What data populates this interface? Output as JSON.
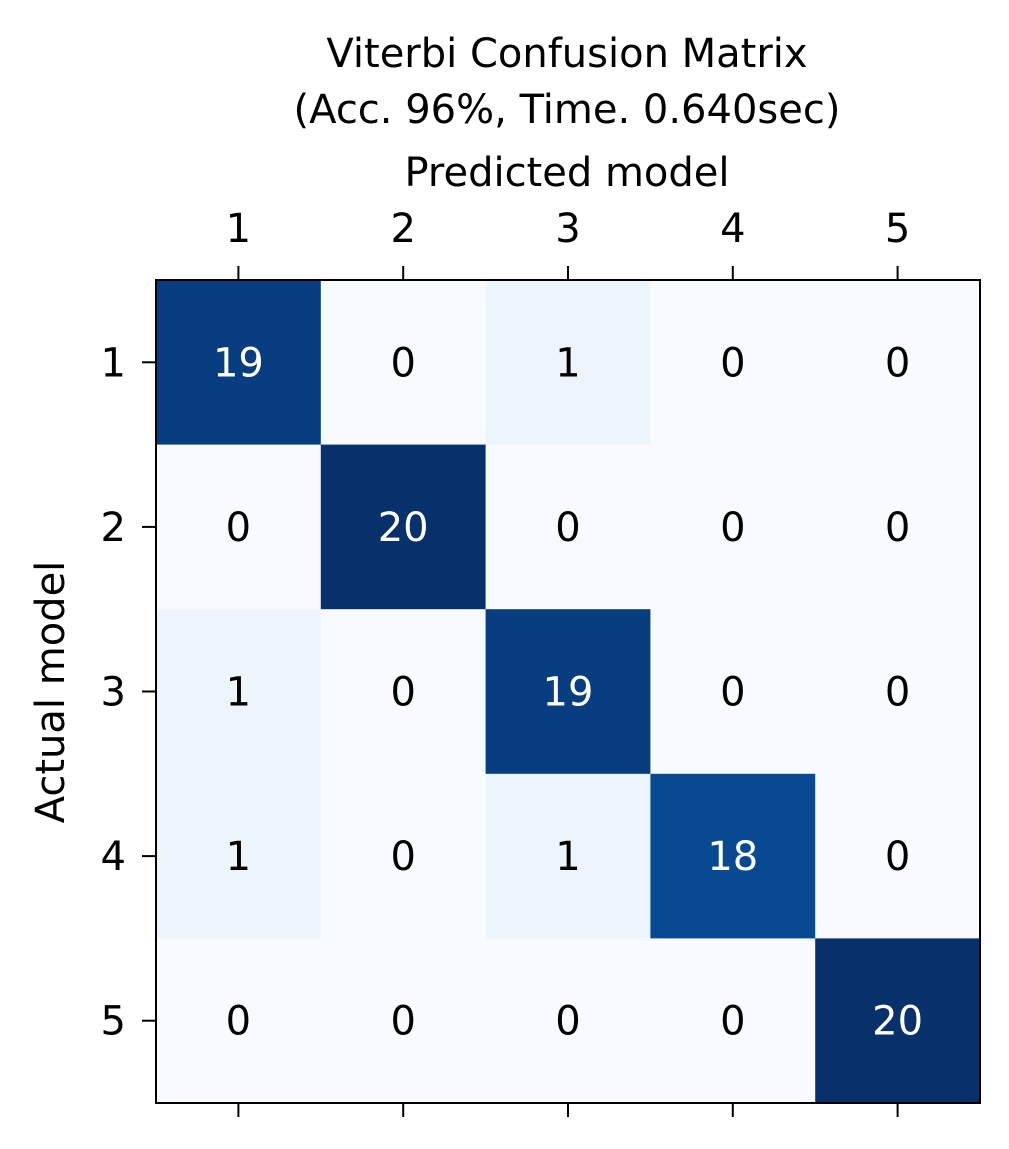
{
  "chart_data": {
    "type": "heatmap",
    "title_lines": [
      "Viterbi Confusion Matrix",
      "(Acc. 96%, Time. 0.640sec)"
    ],
    "xlabel": "Predicted model",
    "ylabel": "Actual model",
    "x_categories": [
      "1",
      "2",
      "3",
      "4",
      "5"
    ],
    "y_categories": [
      "1",
      "2",
      "3",
      "4",
      "5"
    ],
    "values": [
      [
        19,
        0,
        1,
        0,
        0
      ],
      [
        0,
        20,
        0,
        0,
        0
      ],
      [
        1,
        0,
        19,
        0,
        0
      ],
      [
        1,
        0,
        1,
        18,
        0
      ],
      [
        0,
        0,
        0,
        0,
        20
      ]
    ],
    "colormap": "Blues",
    "value_range": [
      0,
      20
    ],
    "x_axis_position": "top",
    "grid": false,
    "colors": {
      "low": "#f7fbff",
      "mid": "#6baed6",
      "high": "#08306b",
      "text_dark": "#000000",
      "text_light": "#ffffff"
    }
  }
}
